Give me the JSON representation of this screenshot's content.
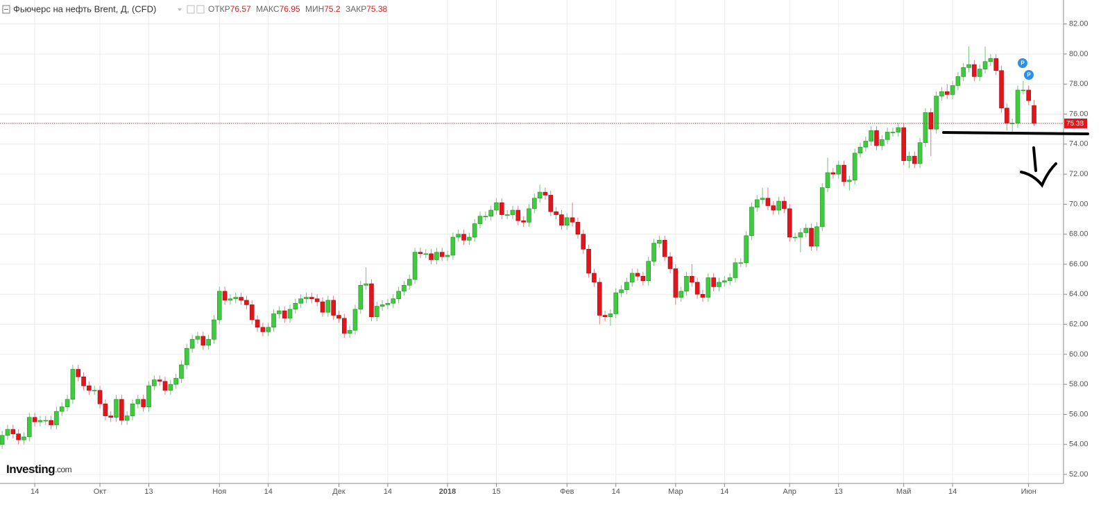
{
  "chart_data": {
    "type": "candlestick",
    "title": "Фьючерс на нефть Brent, Д, (CFD)",
    "ohlc_labels": [
      "ОТКР",
      "МАКС",
      "МИН",
      "ЗАКР"
    ],
    "brand": "Investing",
    "brand_suffix": ".com",
    "markers": [
      "P",
      "P"
    ],
    "up_color": "#3fcb3f",
    "down_color": "#e0161c",
    "grid": true,
    "ylim": [
      51.4,
      83.6
    ],
    "xlim": [
      -0.4,
      195.3
    ],
    "yticks": [
      {
        "value": 52,
        "label": "52.00"
      },
      {
        "value": 54,
        "label": "54.00"
      },
      {
        "value": 56,
        "label": "56.00"
      },
      {
        "value": 58,
        "label": "58.00"
      },
      {
        "value": 60,
        "label": "60.00"
      },
      {
        "value": 62,
        "label": "62.00"
      },
      {
        "value": 64,
        "label": "64.00"
      },
      {
        "value": 66,
        "label": "66.00"
      },
      {
        "value": 68,
        "label": "68.00"
      },
      {
        "value": 70,
        "label": "70.00"
      },
      {
        "value": 72,
        "label": "72.00"
      },
      {
        "value": 74,
        "label": "74.00"
      },
      {
        "value": 76,
        "label": "76.00"
      },
      {
        "value": 78,
        "label": "78.00"
      },
      {
        "value": 80,
        "label": "80.00"
      },
      {
        "value": 82,
        "label": "82.00"
      }
    ],
    "xticks": [
      {
        "value": 6,
        "label": "14"
      },
      {
        "value": 18,
        "label": "Окт"
      },
      {
        "value": 27,
        "label": "13"
      },
      {
        "value": 40,
        "label": "Ноя"
      },
      {
        "value": 49,
        "label": "14"
      },
      {
        "value": 62,
        "label": "Дек"
      },
      {
        "value": 71,
        "label": "14"
      },
      {
        "value": 82,
        "label": "2018"
      },
      {
        "value": 91,
        "label": "15"
      },
      {
        "value": 104,
        "label": "Фев"
      },
      {
        "value": 113,
        "label": "14"
      },
      {
        "value": 124,
        "label": "Мар"
      },
      {
        "value": 133,
        "label": "14"
      },
      {
        "value": 145,
        "label": "Апр"
      },
      {
        "value": 154,
        "label": "13"
      },
      {
        "value": 166,
        "label": "Май"
      },
      {
        "value": 175,
        "label": "14"
      },
      {
        "value": 189,
        "label": "Июн"
      }
    ],
    "open": [
      54.0,
      54.6,
      55.0,
      54.7,
      54.3,
      54.5,
      55.8,
      55.5,
      55.6,
      55.6,
      55.3,
      56.2,
      56.5,
      57.0,
      59.0,
      58.5,
      57.9,
      57.6,
      57.6,
      56.7,
      55.9,
      55.8,
      57.0,
      55.6,
      55.9,
      56.7,
      57.0,
      56.5,
      57.9,
      58.3,
      58.2,
      57.6,
      58.0,
      58.4,
      59.3,
      60.4,
      61.0,
      61.2,
      60.6,
      61.0,
      62.3,
      64.2,
      63.6,
      63.7,
      63.8,
      63.6,
      63.3,
      62.3,
      61.8,
      61.5,
      61.8,
      62.7,
      62.9,
      62.4,
      63.0,
      63.4,
      63.7,
      63.8,
      63.7,
      63.5,
      62.8,
      63.6,
      62.6,
      62.4,
      61.4,
      61.6,
      63.0,
      64.6,
      64.7,
      62.5,
      63.2,
      63.3,
      63.4,
      63.7,
      64.2,
      64.6,
      65.0,
      66.8,
      66.7,
      66.7,
      66.3,
      66.8,
      66.5,
      66.6,
      67.8,
      68.0,
      67.6,
      67.8,
      68.7,
      69.2,
      69.2,
      69.6,
      70.1,
      69.3,
      69.3,
      69.6,
      68.9,
      68.8,
      69.7,
      70.4,
      70.8,
      70.6,
      69.5,
      69.3,
      68.6,
      69.1,
      68.8,
      68.0,
      67.0,
      65.4,
      64.8,
      62.6,
      62.5,
      62.7,
      64.1,
      64.3,
      64.8,
      65.4,
      65.2,
      64.9,
      66.2,
      67.4,
      67.6,
      66.5,
      65.7,
      63.8,
      64.2,
      65.2,
      64.8,
      64.0,
      63.8,
      65.1,
      64.5,
      64.8,
      64.9,
      65.1,
      66.1,
      66.1,
      67.9,
      69.8,
      70.3,
      70.4,
      69.9,
      69.6,
      70.2,
      69.7,
      67.8,
      67.8,
      68.1,
      68.4,
      67.2,
      68.5,
      71.1,
      72.1,
      72.0,
      72.6,
      71.5,
      71.6,
      73.4,
      73.8,
      74.2,
      74.9,
      73.9,
      74.3,
      74.8,
      74.8,
      75.1,
      72.9,
      73.2,
      72.7,
      74.1,
      76.1,
      75.0,
      77.2,
      77.5,
      77.3,
      77.9,
      78.5,
      79.1,
      79.3,
      78.5,
      79.0,
      79.5,
      79.7,
      78.9,
      76.4,
      75.4,
      75.4,
      77.6,
      77.6,
      76.57
    ],
    "high": [
      54.9,
      55.3,
      55.3,
      55.0,
      54.8,
      56.1,
      56.1,
      55.9,
      55.9,
      55.9,
      56.5,
      56.8,
      57.3,
      59.3,
      59.3,
      58.8,
      58.2,
      57.9,
      57.9,
      57.0,
      56.2,
      57.3,
      57.3,
      56.2,
      57.0,
      57.3,
      57.3,
      58.2,
      58.6,
      58.6,
      58.5,
      58.3,
      58.7,
      59.6,
      60.7,
      61.3,
      61.5,
      61.5,
      61.3,
      62.6,
      64.5,
      64.5,
      64.0,
      64.1,
      64.1,
      63.9,
      63.6,
      62.6,
      62.1,
      62.1,
      63.0,
      63.2,
      63.2,
      63.3,
      63.7,
      64.0,
      64.1,
      64.1,
      64.0,
      63.8,
      63.9,
      63.9,
      62.9,
      62.7,
      61.9,
      63.3,
      64.9,
      65.8,
      65.0,
      63.5,
      63.6,
      63.7,
      64.0,
      64.5,
      64.9,
      65.3,
      67.1,
      67.1,
      67.0,
      67.0,
      67.1,
      67.1,
      66.9,
      68.1,
      68.3,
      68.3,
      68.1,
      69.0,
      69.5,
      69.5,
      69.9,
      70.4,
      70.4,
      69.6,
      69.9,
      69.9,
      69.2,
      70.0,
      70.7,
      71.3,
      71.1,
      70.9,
      69.8,
      69.6,
      69.4,
      70.1,
      69.1,
      68.3,
      67.3,
      65.7,
      65.1,
      62.9,
      63.0,
      64.4,
      64.6,
      65.1,
      65.7,
      65.7,
      65.5,
      66.5,
      67.7,
      67.9,
      67.9,
      66.8,
      66.0,
      64.5,
      65.5,
      66.0,
      65.1,
      64.3,
      65.4,
      65.4,
      65.1,
      65.2,
      65.4,
      66.4,
      66.4,
      68.2,
      70.1,
      70.6,
      71.1,
      71.1,
      70.2,
      70.5,
      70.5,
      70.0,
      68.1,
      68.4,
      68.7,
      68.7,
      68.8,
      71.4,
      73.1,
      72.4,
      72.9,
      72.9,
      71.9,
      73.7,
      74.1,
      74.5,
      75.2,
      75.2,
      74.6,
      75.1,
      75.1,
      75.4,
      75.4,
      73.5,
      73.5,
      74.4,
      76.4,
      76.4,
      77.5,
      77.8,
      78.0,
      78.2,
      78.8,
      79.4,
      80.5,
      79.6,
      79.3,
      80.5,
      80.0,
      80.0,
      79.2,
      76.7,
      75.7,
      77.9,
      78.2,
      77.9,
      76.95
    ],
    "low": [
      53.7,
      54.3,
      54.4,
      54.0,
      54.0,
      54.2,
      55.2,
      55.2,
      55.3,
      55.0,
      55.0,
      55.9,
      56.2,
      56.7,
      58.2,
      57.6,
      57.3,
      57.3,
      56.4,
      55.6,
      55.5,
      55.5,
      55.3,
      55.3,
      55.6,
      56.4,
      56.2,
      56.2,
      57.6,
      57.9,
      57.3,
      57.3,
      57.7,
      58.1,
      59.0,
      60.1,
      60.7,
      60.3,
      60.3,
      60.7,
      62.0,
      63.3,
      63.3,
      63.4,
      63.3,
      63.0,
      62.0,
      61.5,
      61.2,
      61.2,
      61.5,
      62.4,
      62.1,
      62.1,
      62.7,
      63.1,
      63.4,
      63.4,
      63.2,
      62.5,
      62.5,
      62.3,
      62.1,
      61.1,
      61.1,
      61.3,
      62.7,
      64.3,
      62.2,
      62.2,
      62.9,
      63.0,
      63.1,
      63.4,
      63.9,
      64.3,
      64.7,
      66.4,
      66.4,
      66.0,
      66.0,
      66.2,
      66.2,
      66.3,
      67.5,
      67.3,
      67.3,
      67.5,
      68.4,
      68.9,
      68.9,
      69.3,
      69.0,
      69.0,
      69.0,
      68.6,
      68.5,
      68.5,
      69.4,
      70.1,
      70.3,
      69.2,
      69.0,
      68.3,
      68.3,
      68.5,
      67.7,
      66.7,
      65.1,
      64.5,
      62.0,
      62.2,
      61.9,
      62.4,
      63.8,
      64.0,
      64.5,
      64.9,
      64.6,
      64.6,
      65.9,
      67.1,
      66.2,
      65.4,
      63.3,
      63.5,
      63.9,
      64.5,
      63.7,
      63.5,
      63.5,
      64.2,
      64.2,
      64.5,
      64.6,
      64.8,
      65.8,
      65.8,
      67.6,
      69.5,
      70.0,
      69.6,
      69.3,
      69.3,
      69.4,
      67.5,
      67.5,
      66.8,
      67.8,
      66.9,
      66.9,
      68.2,
      70.8,
      71.7,
      71.7,
      71.2,
      70.9,
      71.3,
      73.1,
      73.5,
      73.9,
      73.6,
      73.6,
      74.0,
      74.5,
      74.5,
      72.6,
      72.4,
      72.4,
      72.4,
      73.8,
      73.2,
      74.7,
      76.9,
      77.0,
      77.0,
      77.6,
      78.2,
      78.8,
      78.2,
      78.2,
      78.7,
      79.2,
      78.6,
      76.1,
      74.9,
      74.8,
      75.1,
      77.3,
      76.6,
      75.2
    ],
    "close": [
      54.6,
      55.0,
      54.7,
      54.3,
      54.5,
      55.8,
      55.5,
      55.6,
      55.6,
      55.3,
      56.2,
      56.5,
      57.0,
      59.0,
      58.5,
      57.9,
      57.6,
      57.6,
      56.7,
      55.9,
      55.8,
      57.0,
      55.6,
      55.9,
      56.7,
      57.0,
      56.5,
      57.9,
      58.3,
      58.2,
      57.6,
      58.0,
      58.4,
      59.3,
      60.4,
      61.0,
      61.2,
      60.6,
      61.0,
      62.3,
      64.2,
      63.6,
      63.7,
      63.8,
      63.6,
      63.3,
      62.3,
      61.8,
      61.5,
      61.8,
      62.7,
      62.9,
      62.4,
      63.0,
      63.4,
      63.7,
      63.8,
      63.7,
      63.5,
      62.8,
      63.6,
      62.6,
      62.4,
      61.4,
      61.6,
      63.0,
      64.6,
      64.7,
      62.5,
      63.2,
      63.3,
      63.4,
      63.7,
      64.2,
      64.6,
      65.0,
      66.8,
      66.7,
      66.7,
      66.3,
      66.8,
      66.5,
      66.6,
      67.8,
      68.0,
      67.6,
      67.8,
      68.7,
      69.2,
      69.2,
      69.6,
      70.1,
      69.3,
      69.3,
      69.6,
      68.9,
      68.8,
      69.7,
      70.4,
      70.8,
      70.6,
      69.5,
      69.3,
      68.6,
      69.1,
      68.8,
      68.0,
      67.0,
      65.4,
      64.8,
      62.6,
      62.5,
      62.7,
      64.1,
      64.3,
      64.8,
      65.4,
      65.2,
      64.9,
      66.2,
      67.4,
      67.6,
      66.5,
      65.7,
      63.8,
      64.2,
      65.2,
      64.8,
      64.0,
      63.8,
      65.1,
      64.5,
      64.8,
      64.9,
      65.1,
      66.1,
      66.1,
      67.9,
      69.8,
      70.3,
      70.4,
      69.9,
      69.6,
      70.2,
      69.7,
      67.8,
      67.8,
      68.1,
      68.4,
      67.2,
      68.5,
      71.1,
      72.1,
      72.0,
      72.6,
      71.5,
      71.6,
      73.4,
      73.8,
      74.2,
      74.9,
      73.9,
      74.3,
      74.8,
      74.8,
      75.1,
      72.9,
      73.2,
      72.7,
      74.1,
      76.1,
      75.0,
      77.2,
      77.5,
      77.3,
      77.9,
      78.5,
      79.1,
      79.3,
      78.5,
      79.0,
      79.5,
      79.7,
      78.9,
      76.4,
      75.4,
      75.4,
      77.6,
      77.6,
      76.9,
      75.38
    ]
  }
}
